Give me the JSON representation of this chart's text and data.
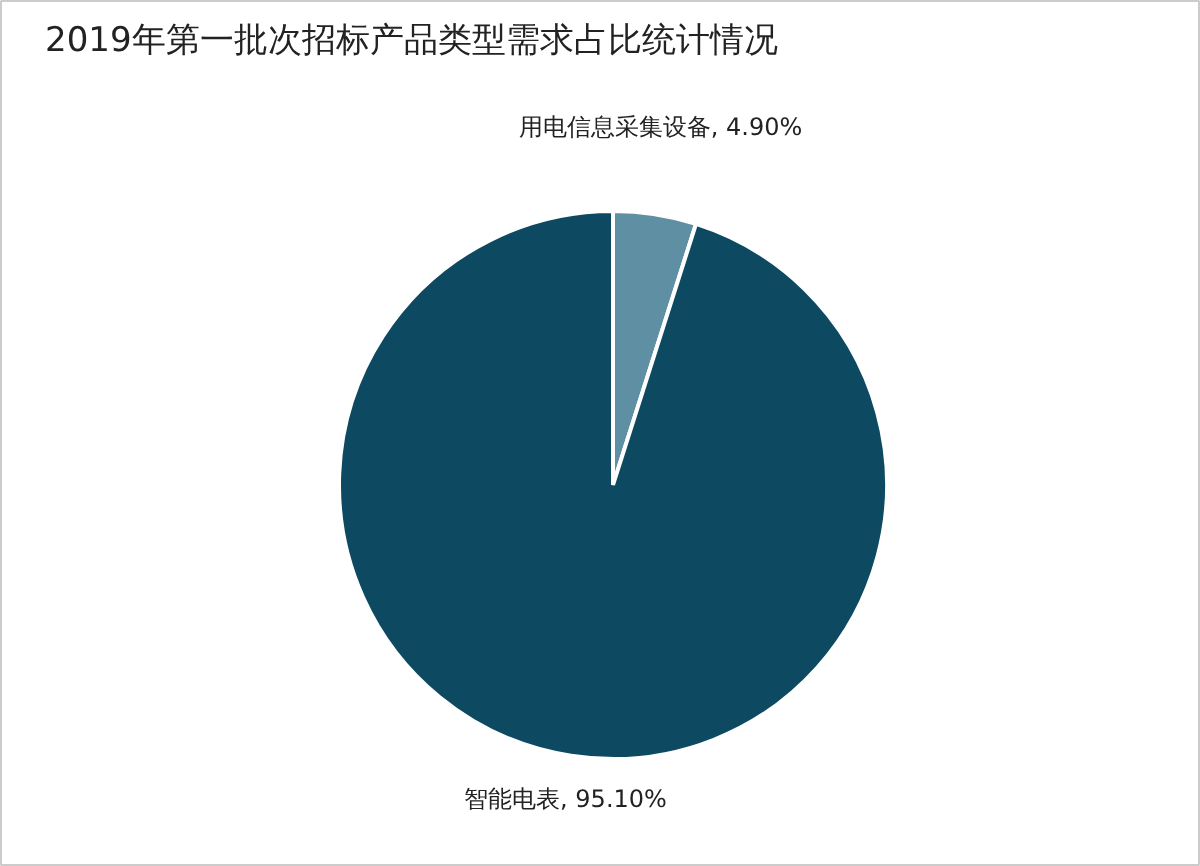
{
  "chart_data": {
    "type": "pie",
    "title": "2019年第一批次招标产品类型需求占比统计情况",
    "categories": [
      "用电信息采集设备",
      "智能电表"
    ],
    "values": [
      4.9,
      95.1
    ],
    "colors": [
      "#5f8fa3",
      "#0d4a62"
    ],
    "value_labels": [
      "4.90%",
      "95.10%"
    ]
  }
}
